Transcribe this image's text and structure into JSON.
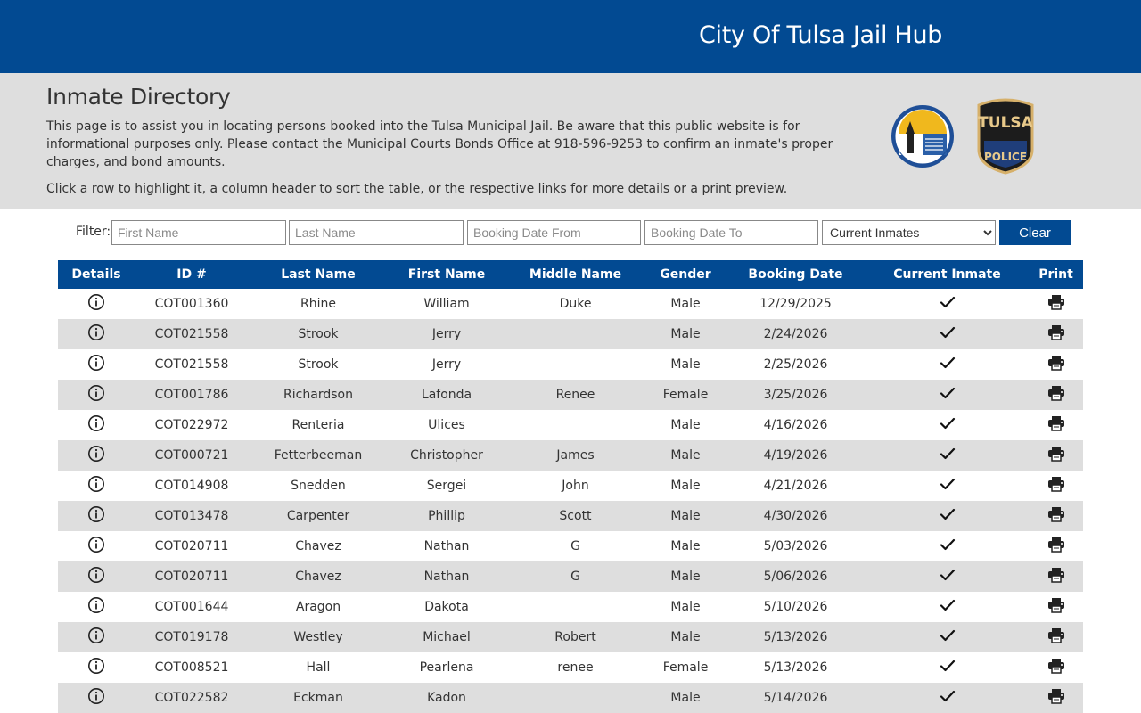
{
  "header": {
    "site_title": "City Of Tulsa Jail Hub"
  },
  "intro": {
    "title": "Inmate Directory",
    "description": "This page is to assist you in locating persons booked into the Tulsa Municipal Jail. Be aware that this public website is for informational purposes only. Please contact the Municipal Courts Bonds Office at 918-596-9253 to confirm an inmate's proper charges, and bond amounts.",
    "hint": "Click a row to highlight it, a column header to sort the table, or the respective links for more details or a print preview.",
    "seal_text": "CITY OF TULSA OKLAHOMA",
    "badge_text": [
      "TULSA",
      "POLICE"
    ]
  },
  "filter": {
    "label": "Filter:",
    "first_name_placeholder": "First Name",
    "last_name_placeholder": "Last Name",
    "booking_from_placeholder": "Booking Date From",
    "booking_to_placeholder": "Booking Date To",
    "status_selected": "Current Inmates",
    "clear_label": "Clear"
  },
  "table": {
    "headers": [
      "Details",
      "ID #",
      "Last Name",
      "First Name",
      "Middle Name",
      "Gender",
      "Booking Date",
      "Current Inmate",
      "Print"
    ],
    "rows": [
      {
        "id": "COT001360",
        "last": "Rhine",
        "first": "William",
        "middle": "Duke",
        "gender": "Male",
        "date": "12/29/2025"
      },
      {
        "id": "COT021558",
        "last": "Strook",
        "first": "Jerry",
        "middle": "",
        "gender": "Male",
        "date": "2/24/2026"
      },
      {
        "id": "COT021558",
        "last": "Strook",
        "first": "Jerry",
        "middle": "",
        "gender": "Male",
        "date": "2/25/2026"
      },
      {
        "id": "COT001786",
        "last": "Richardson",
        "first": "Lafonda",
        "middle": "Renee",
        "gender": "Female",
        "date": "3/25/2026"
      },
      {
        "id": "COT022972",
        "last": "Renteria",
        "first": "Ulices",
        "middle": "",
        "gender": "Male",
        "date": "4/16/2026"
      },
      {
        "id": "COT000721",
        "last": "Fetterbeeman",
        "first": "Christopher",
        "middle": "James",
        "gender": "Male",
        "date": "4/19/2026"
      },
      {
        "id": "COT014908",
        "last": "Snedden",
        "first": "Sergei",
        "middle": "John",
        "gender": "Male",
        "date": "4/21/2026"
      },
      {
        "id": "COT013478",
        "last": "Carpenter",
        "first": "Phillip",
        "middle": "Scott",
        "gender": "Male",
        "date": "4/30/2026"
      },
      {
        "id": "COT020711",
        "last": "Chavez",
        "first": "Nathan",
        "middle": "G",
        "gender": "Male",
        "date": "5/03/2026"
      },
      {
        "id": "COT020711",
        "last": "Chavez",
        "first": "Nathan",
        "middle": "G",
        "gender": "Male",
        "date": "5/06/2026"
      },
      {
        "id": "COT001644",
        "last": "Aragon",
        "first": "Dakota",
        "middle": "",
        "gender": "Male",
        "date": "5/10/2026"
      },
      {
        "id": "COT019178",
        "last": "Westley",
        "first": "Michael",
        "middle": "Robert",
        "gender": "Male",
        "date": "5/13/2026"
      },
      {
        "id": "COT008521",
        "last": "Hall",
        "first": "Pearlena",
        "middle": "renee",
        "gender": "Female",
        "date": "5/13/2026"
      },
      {
        "id": "COT022582",
        "last": "Eckman",
        "first": "Kadon",
        "middle": "",
        "gender": "Male",
        "date": "5/14/2026"
      }
    ]
  },
  "icons": {
    "details": "info-icon",
    "current": "checkmark-icon",
    "print": "printer-icon"
  },
  "colors": {
    "brand_blue": "#024a92",
    "band_gray": "#dedede"
  }
}
